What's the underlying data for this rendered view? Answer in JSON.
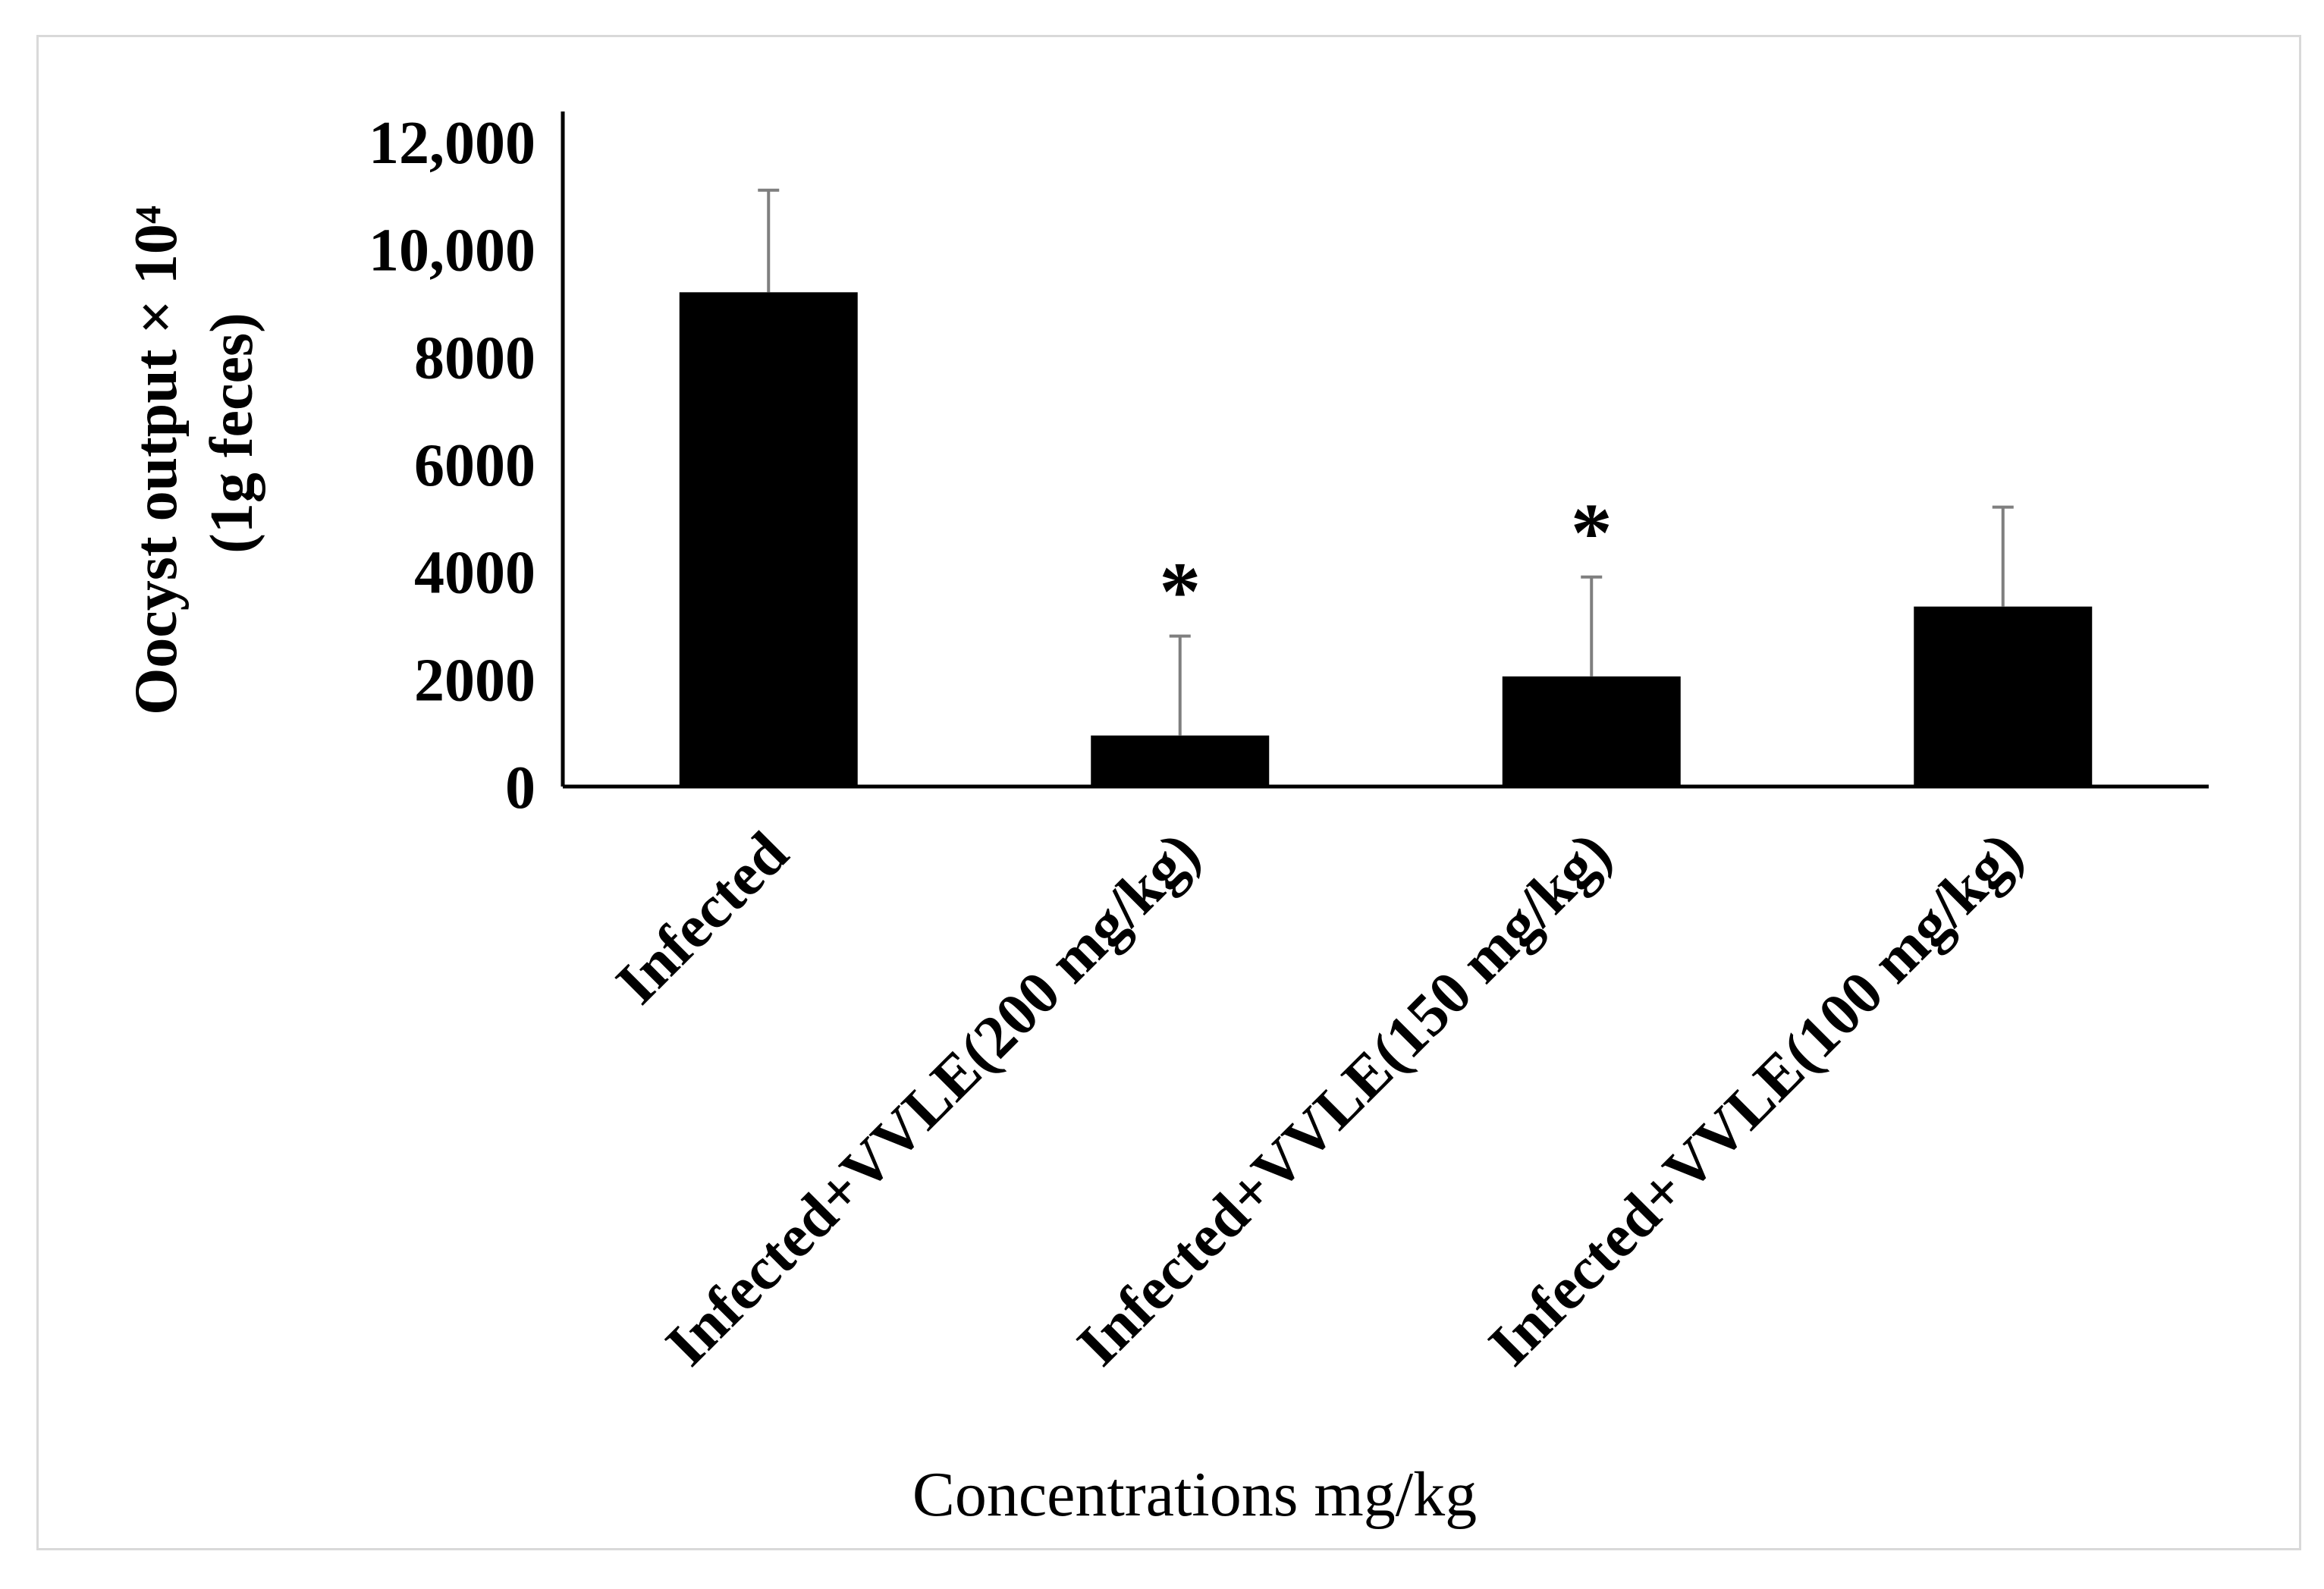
{
  "chart_data": {
    "type": "bar",
    "title": "",
    "xlabel": "Concentrations mg/kg",
    "ylabel_line1": "Oocyst output × 10⁴",
    "ylabel_line2": "(1g feces)",
    "ylim": [
      0,
      12000
    ],
    "yticks": [
      {
        "value": 0,
        "label": "0"
      },
      {
        "value": 2000,
        "label": "2000"
      },
      {
        "value": 4000,
        "label": "4000"
      },
      {
        "value": 6000,
        "label": "6000"
      },
      {
        "value": 8000,
        "label": "8000"
      },
      {
        "value": 10000,
        "label": "10,000"
      },
      {
        "value": 12000,
        "label": "12,000"
      }
    ],
    "categories": [
      "Infected",
      "Infected+VVLE(200 mg/kg)",
      "Infected+VVLE(150 mg/kg)",
      "Infected+VVLE(100 mg/kg)"
    ],
    "values": [
      9200,
      950,
      2050,
      3350
    ],
    "errors": [
      1900,
      1850,
      1850,
      1850
    ],
    "significance": [
      "",
      "*",
      "*",
      ""
    ],
    "bar_color": "#000000",
    "grid": false
  }
}
